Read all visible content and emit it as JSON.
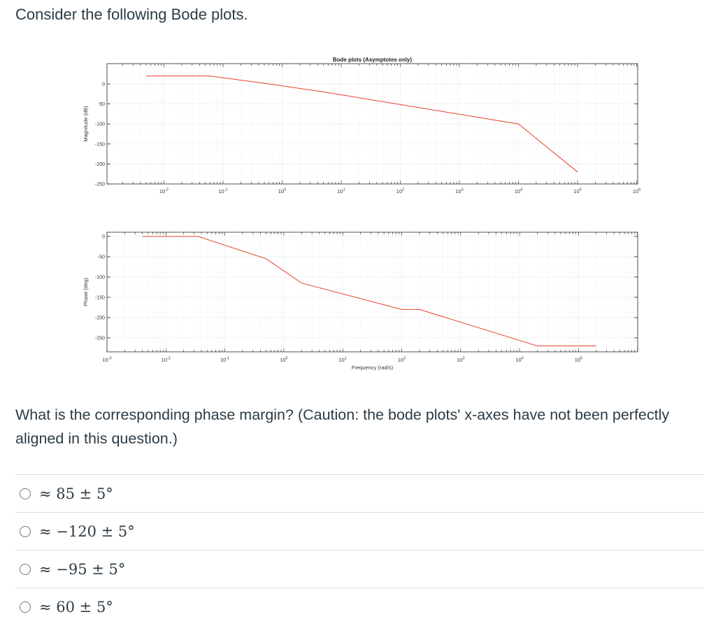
{
  "question": {
    "intro": "Consider the following Bode plots.",
    "prompt": "What is the corresponding phase margin? (Caution: the bode plots' x-axes have not been perfectly aligned in this question.)"
  },
  "answers": [
    {
      "label": "≈ 85 ± 5°"
    },
    {
      "label": "≈ −120 ± 5°"
    },
    {
      "label": "≈ −95 ± 5°"
    },
    {
      "label": "≈ 60 ± 5°"
    }
  ],
  "colors": {
    "curve": "#e8402a",
    "axis": "#262626",
    "grid": "#e3e3e3",
    "text": "#2d3b45"
  },
  "chart_data": [
    {
      "type": "line",
      "title": "Bode plots (Asymptotes only)",
      "ylabel": "Magnitude (dB)",
      "xlabel": "",
      "xscale": "log",
      "xlim": [
        0.001,
        1000000
      ],
      "ylim": [
        -250,
        0
      ],
      "yticks": [
        0,
        -50,
        -100,
        -150,
        -200,
        -250
      ],
      "xtick_labels": [
        "10-2",
        "10-1",
        "100",
        "101",
        "102",
        "103",
        "104",
        "105",
        "106"
      ],
      "series": [
        {
          "x": [
            0.005,
            0.06,
            0.6,
            5,
            10000,
            100000
          ],
          "y": [
            20,
            20,
            0,
            -20,
            -100,
            -220
          ]
        }
      ]
    },
    {
      "type": "line",
      "title": "",
      "ylabel": "Phase (deg)",
      "xlabel": "Frequency (rad/s)",
      "xscale": "log",
      "xlim": [
        0.001,
        1000000
      ],
      "ylim": [
        -270,
        10
      ],
      "yticks": [
        0,
        -50,
        -100,
        -150,
        -200,
        -250
      ],
      "xtick_labels": [
        "10-3",
        "10-2",
        "10-1",
        "100",
        "101",
        "102",
        "103",
        "104",
        "105"
      ],
      "series": [
        {
          "x": [
            0.004,
            0.035,
            0.5,
            2,
            100,
            200,
            20000,
            200000
          ],
          "y": [
            0,
            0,
            -55,
            -115,
            -180,
            -180,
            -270,
            -270
          ]
        }
      ]
    }
  ]
}
